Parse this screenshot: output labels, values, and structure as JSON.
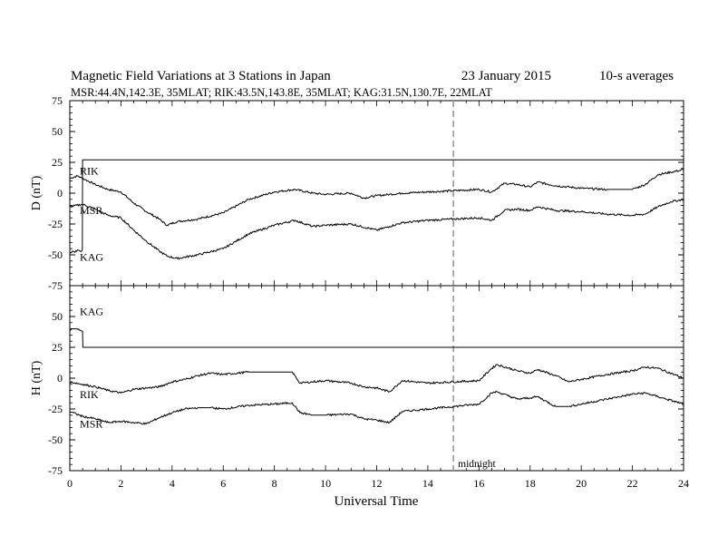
{
  "title": "Magnetic Field Variations at 3 Stations in Japan",
  "date": "23 January 2015",
  "averaging": "10-s averages",
  "subtitle": "MSR:44.4N,142.3E, 35MLAT;  RIK:43.5N,143.8E, 35MLAT;  KAG:31.5N,130.7E, 22MLAT",
  "xlabel": "Universal Time",
  "midnight_label": "midnight",
  "colors": {
    "trace": "#000000",
    "midnight_line": "#999999",
    "axis": "#000000"
  },
  "chart_data": [
    {
      "type": "line",
      "panel": "D",
      "ylabel": "D (nT)",
      "xlim": [
        0,
        24
      ],
      "ylim": [
        -75,
        75
      ],
      "xticks": [
        0,
        2,
        4,
        6,
        8,
        10,
        12,
        14,
        16,
        18,
        20,
        22,
        24
      ],
      "yticks": [
        -75,
        -50,
        -25,
        0,
        25,
        50,
        75
      ],
      "midnight_ut": 15,
      "series": [
        {
          "name": "RIK",
          "x": [
            0,
            0.3,
            0.6,
            1,
            1.5,
            2,
            2.5,
            3,
            3.5,
            3.8,
            4.2,
            5,
            6,
            7,
            8,
            8.8,
            9.5,
            10,
            11,
            11.5,
            12,
            12.5,
            13,
            14,
            15,
            16,
            16.5,
            17,
            17.5,
            18,
            18.3,
            19,
            20,
            21,
            22,
            22.5,
            23,
            23.5,
            24
          ],
          "values": [
            12,
            14,
            11,
            7,
            3,
            1,
            -8,
            -15,
            -21,
            -26,
            -23,
            -21,
            -16,
            -5,
            1,
            3,
            0,
            -1,
            0,
            -4,
            -2,
            -1,
            0,
            1,
            2,
            3,
            1,
            8,
            7,
            5,
            9,
            6,
            4,
            3,
            3,
            7,
            15,
            17,
            19
          ]
        },
        {
          "name": "MSR",
          "x": [
            0,
            0.5,
            1,
            1.5,
            2,
            2.5,
            3,
            3.5,
            3.8,
            4.2,
            5,
            6,
            7,
            8,
            8.8,
            9.5,
            10,
            11,
            12,
            12.5,
            13,
            14,
            15,
            16,
            16.5,
            17,
            17.5,
            18,
            18.3,
            19,
            20,
            21,
            22,
            22.5,
            23,
            23.5,
            24
          ],
          "values": [
            -11,
            -9,
            -13,
            -18,
            -20,
            -30,
            -39,
            -47,
            -51,
            -53,
            -50,
            -45,
            -33,
            -26,
            -22,
            -27,
            -26,
            -25,
            -30,
            -27,
            -24,
            -22,
            -21,
            -20,
            -22,
            -14,
            -13,
            -14,
            -11,
            -14,
            -15,
            -17,
            -18,
            -17,
            -11,
            -7,
            -5
          ]
        },
        {
          "name": "KAG",
          "x": [
            0,
            0.1,
            0.2,
            0.3,
            0.4,
            0.49,
            0.5,
            0.51,
            1,
            4,
            8,
            12,
            16,
            20,
            24
          ],
          "values": [
            -49,
            -47,
            -48,
            -46,
            -47,
            -46,
            27,
            27,
            27,
            27,
            27,
            27,
            27,
            27,
            27
          ]
        }
      ]
    },
    {
      "type": "line",
      "panel": "H",
      "ylabel": "H (nT)",
      "xlim": [
        0,
        24
      ],
      "ylim": [
        -75,
        75
      ],
      "xticks": [
        0,
        2,
        4,
        6,
        8,
        10,
        12,
        14,
        16,
        18,
        20,
        22,
        24
      ],
      "yticks": [
        -75,
        -50,
        -25,
        0,
        25,
        50,
        75
      ],
      "midnight_ut": 15,
      "series": [
        {
          "name": "KAG",
          "x": [
            0,
            0.1,
            0.25,
            0.4,
            0.5,
            0.51,
            1,
            4,
            8,
            12,
            16,
            20,
            24
          ],
          "values": [
            38,
            40,
            40,
            39,
            38,
            25,
            25,
            25,
            25,
            25,
            25,
            25,
            25
          ]
        },
        {
          "name": "RIK",
          "x": [
            0,
            0.5,
            1,
            1.5,
            2,
            2.5,
            3,
            3.5,
            4,
            4.5,
            5,
            5.5,
            6,
            7,
            8,
            8.7,
            9,
            9.5,
            10,
            11,
            11.5,
            12,
            12.5,
            13,
            13.5,
            14,
            15,
            16,
            16.5,
            16.7,
            17.5,
            18,
            18.3,
            19,
            19.5,
            20,
            21,
            22,
            22.5,
            23,
            24
          ],
          "values": [
            -3,
            -5,
            -7,
            -10,
            -12,
            -9,
            -8,
            -7,
            -3,
            -1,
            2,
            4,
            3,
            5,
            5,
            5,
            -4,
            -3,
            -2,
            -4,
            -7,
            -8,
            -11,
            -2,
            -3,
            -4,
            -3,
            -2,
            8,
            11,
            6,
            4,
            7,
            2,
            -3,
            -1,
            3,
            6,
            9,
            8,
            0
          ]
        },
        {
          "name": "MSR",
          "x": [
            0,
            0.5,
            1,
            1.5,
            2,
            2.5,
            3,
            3.5,
            4,
            4.5,
            5,
            5.5,
            6,
            7,
            8,
            8.7,
            9,
            9.5,
            10,
            11,
            11.5,
            12,
            12.5,
            13,
            13.5,
            14,
            15,
            16,
            16.5,
            16.7,
            17.5,
            18,
            18.3,
            19,
            19.5,
            20,
            21,
            22,
            22.5,
            23,
            24
          ],
          "values": [
            -27,
            -31,
            -33,
            -36,
            -35,
            -36,
            -37,
            -32,
            -28,
            -25,
            -24,
            -24,
            -25,
            -22,
            -21,
            -20,
            -28,
            -30,
            -30,
            -29,
            -33,
            -34,
            -36,
            -27,
            -26,
            -25,
            -23,
            -21,
            -12,
            -11,
            -17,
            -16,
            -15,
            -23,
            -23,
            -21,
            -17,
            -13,
            -12,
            -15,
            -21
          ]
        }
      ]
    }
  ]
}
